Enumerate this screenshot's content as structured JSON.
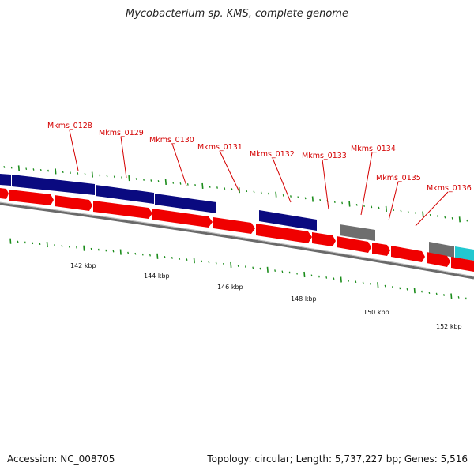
{
  "title": "Mycobacterium sp. KMS, complete genome",
  "footer": {
    "accession": "Accession: NC_008705",
    "summary": "Topology: circular; Length: 5,737,227 bp; Genes: 5,516"
  },
  "colors": {
    "forward_gene": "#0a0a80",
    "reverse_gene": "#f00000",
    "pseudo_gene": "#6e6e6e",
    "rna_gene": "#22c8d0",
    "backbone": "#808080",
    "tick": "#1a8c1a",
    "label": "#d40000"
  },
  "kbp_labels": [
    "142 kbp",
    "144 kbp",
    "146 kbp",
    "148 kbp",
    "150 kbp",
    "152 kbp"
  ],
  "gene_labels": [
    "Mkms_0128",
    "Mkms_0129",
    "Mkms_0130",
    "Mkms_0131",
    "Mkms_0132",
    "Mkms_0133",
    "Mkms_0134",
    "Mkms_0135",
    "Mkms_0136"
  ]
}
